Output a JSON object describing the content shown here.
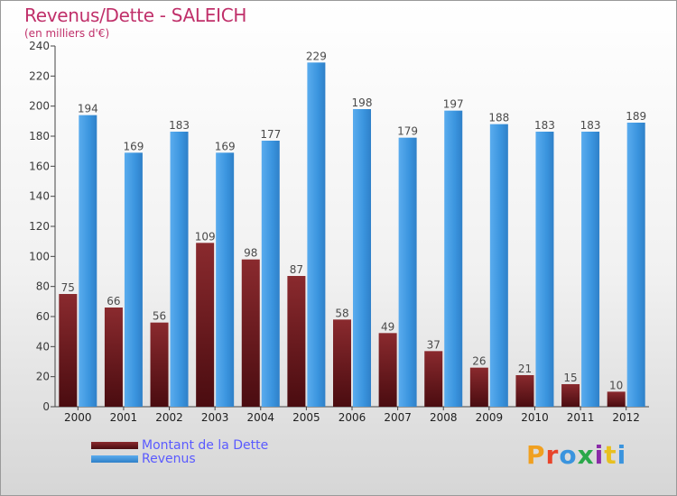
{
  "title": "Revenus/Dette - SALEICH",
  "subtitle": "(en milliers d'€)",
  "logo_text": "Proxiti",
  "colors": {
    "title": "#c0306a",
    "debt_bar": "#7a1e22",
    "revenue_bar": "#3a94de",
    "legend_text": "#5a5aff"
  },
  "chart_data": {
    "type": "bar",
    "title": "Revenus/Dette - SALEICH",
    "subtitle": "(en milliers d'€)",
    "xlabel": "",
    "ylabel": "",
    "ylim": [
      0,
      240
    ],
    "yticks": [
      0,
      20,
      40,
      60,
      80,
      100,
      120,
      140,
      160,
      180,
      200,
      220,
      240
    ],
    "grid": false,
    "legend_position": "bottom-left",
    "categories": [
      "2000",
      "2001",
      "2002",
      "2003",
      "2004",
      "2005",
      "2006",
      "2007",
      "2008",
      "2009",
      "2010",
      "2011",
      "2012"
    ],
    "series": [
      {
        "name": "Montant de la Dette",
        "color": "#7a1e22",
        "values": [
          75,
          66,
          56,
          109,
          98,
          87,
          58,
          49,
          37,
          26,
          21,
          15,
          10
        ]
      },
      {
        "name": "Revenus",
        "color": "#3a94de",
        "values": [
          194,
          169,
          183,
          169,
          177,
          229,
          198,
          179,
          197,
          188,
          183,
          183,
          189
        ]
      }
    ]
  }
}
